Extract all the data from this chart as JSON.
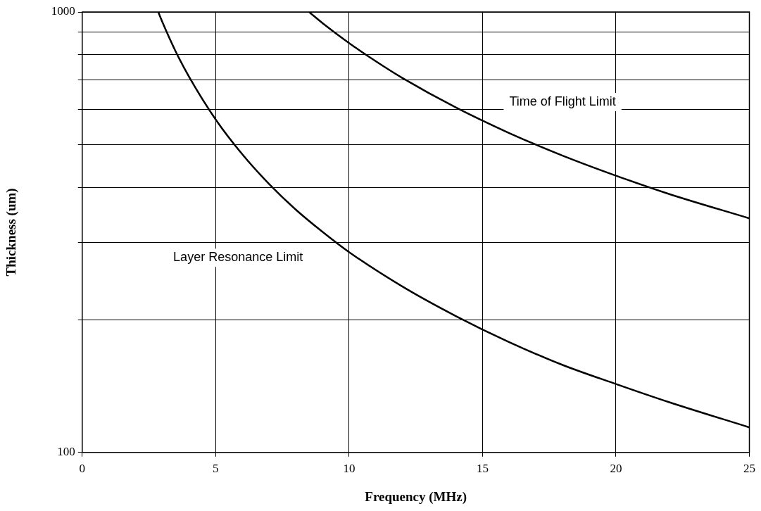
{
  "chart_data": {
    "type": "line",
    "xlabel": "Frequency (MHz)",
    "ylabel": "Thickness (um)",
    "log": "y",
    "grid": true,
    "legend": false,
    "marker": "none",
    "line_style": "solid",
    "xlim": [
      0,
      25
    ],
    "xticks": [
      0,
      5,
      10,
      15,
      20,
      25
    ],
    "ylim": [
      100,
      1000
    ],
    "yticks": [
      100,
      {
        "value": 200,
        "label": null
      },
      {
        "value": 300,
        "label": null
      },
      {
        "value": 400,
        "label": null
      },
      {
        "value": 500,
        "label": null
      },
      {
        "value": 600,
        "label": null
      },
      {
        "value": 700,
        "label": null
      },
      {
        "value": 800,
        "label": null
      },
      {
        "value": 900,
        "label": null
      },
      1000
    ],
    "series": [
      {
        "name": "Layer Resonance Limit",
        "color": "#000000",
        "x": [
          2.85,
          3,
          3.5,
          4,
          5,
          6,
          7,
          8,
          9,
          10,
          12,
          14,
          16,
          18,
          20,
          22,
          25
        ],
        "values": [
          1000,
          950,
          814,
          713,
          570,
          475,
          407,
          356,
          317,
          285,
          238,
          204,
          178,
          158,
          143,
          130,
          114
        ]
      },
      {
        "name": "Time of Flight Limit",
        "color": "#000000",
        "x": [
          8.5,
          9,
          10,
          11,
          12,
          14,
          16,
          18,
          20,
          22,
          25
        ],
        "values": [
          1000,
          944,
          850,
          773,
          708,
          607,
          531,
          472,
          425,
          386,
          340
        ]
      }
    ]
  }
}
